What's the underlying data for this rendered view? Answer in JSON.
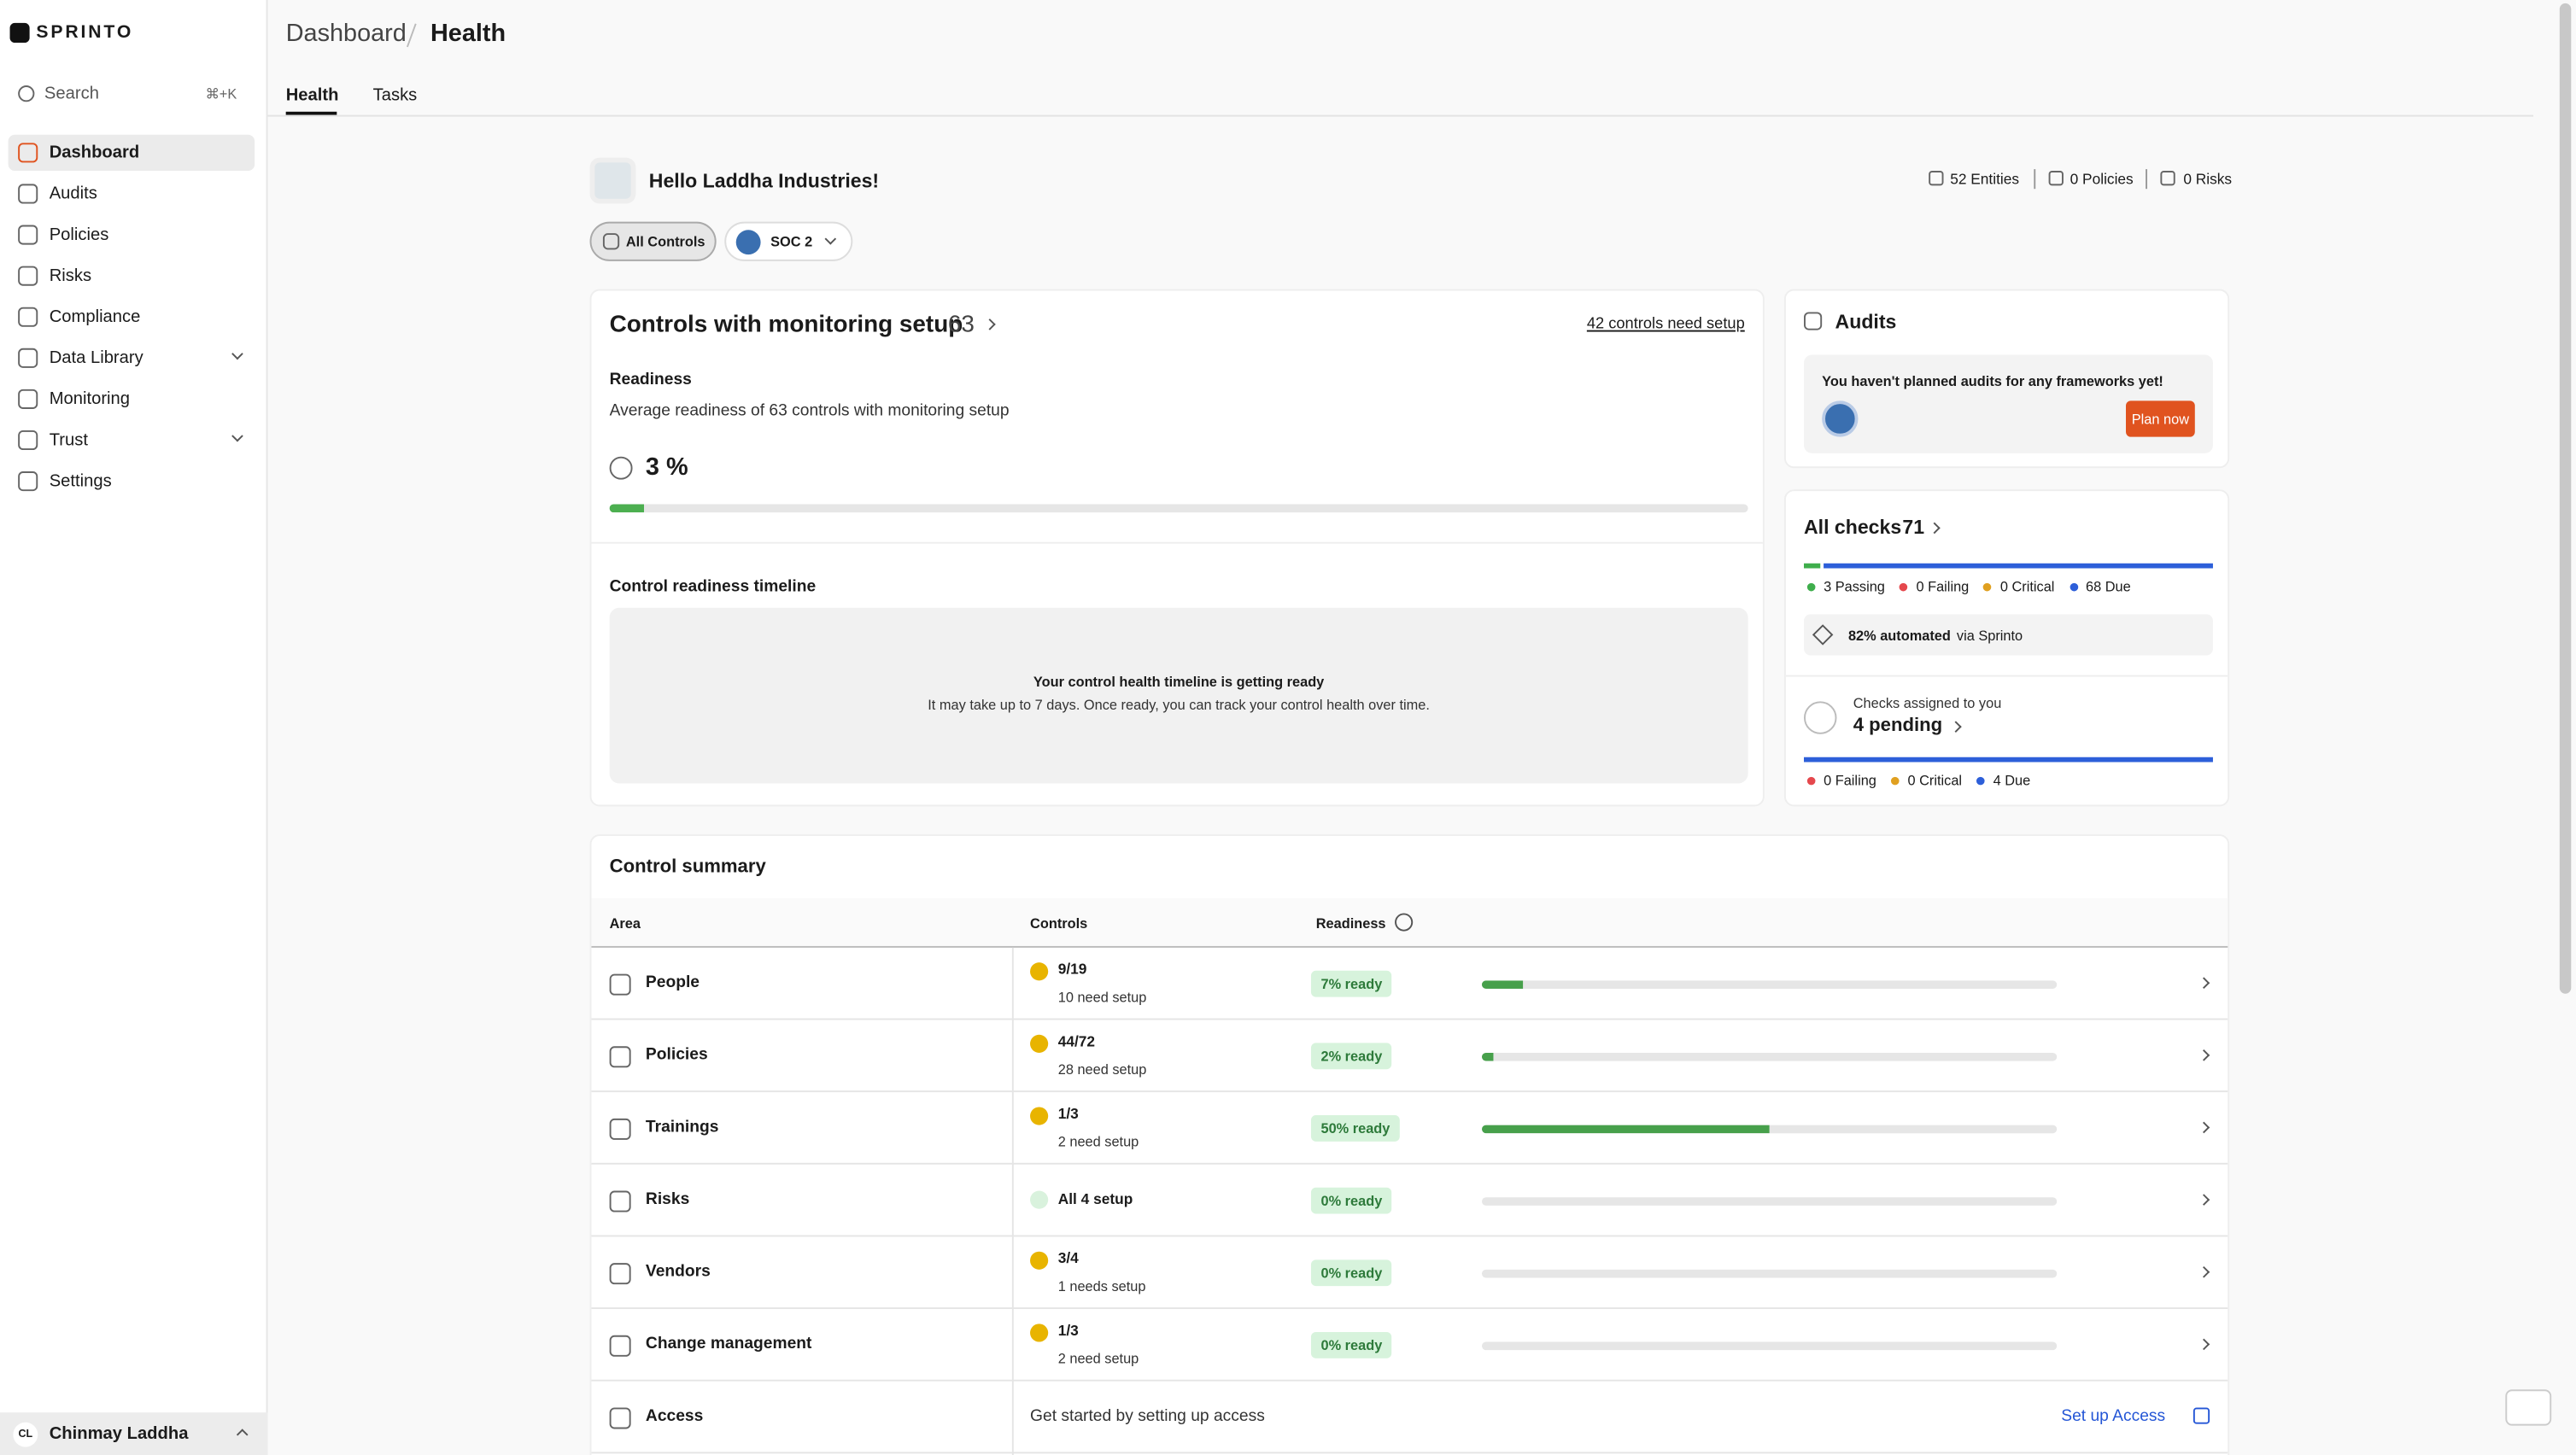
{
  "sidebar": {
    "brand": "SPRINTO",
    "search": "Search",
    "shortcut": "⌘+K",
    "nav": [
      "Dashboard",
      "Audits",
      "Policies",
      "Risks",
      "Compliance",
      "Data Library",
      "Monitoring",
      "Trust",
      "Settings"
    ],
    "user_initials": "CL",
    "user": "Chinmay Laddha"
  },
  "header": {
    "breadcrumb": [
      "Dashboard",
      "Health"
    ],
    "tabs": [
      "Health",
      "Tasks"
    ]
  },
  "greeting": "Hello Laddha Industries!",
  "stats": [
    "52 Entities",
    "0 Policies",
    "0 Risks"
  ],
  "filters": [
    "All Controls",
    "SOC 2"
  ],
  "monitoring": {
    "title": "Controls with monitoring setup",
    "count": 63,
    "setup_link": "42 controls need setup",
    "readiness_title": "Readiness",
    "readiness_desc": "Average readiness of 63 controls with monitoring setup",
    "readiness": {
      "value": 3,
      "label": "3 %"
    },
    "timeline_title": "Control readiness timeline",
    "timeline_heading": "Your control health timeline is getting ready",
    "timeline_text": "It may take up to 7 days. Once ready, you can track your control health over time."
  },
  "audits": {
    "title": "Audits",
    "message": "You haven't planned audits for any frameworks yet!",
    "button": "Plan now"
  },
  "checks": {
    "title": "All checks",
    "total": 71,
    "legend": [
      {
        "value": 3,
        "label": "3 Passing",
        "color": "#3fae4c"
      },
      {
        "value": 0,
        "label": "0 Failing",
        "color": "#e5484d"
      },
      {
        "value": 0,
        "label": "0 Critical",
        "color": "#e0a020"
      },
      {
        "value": 68,
        "label": "68 Due",
        "color": "#2d5fd9"
      }
    ],
    "automated": "82% automated",
    "automated_suffix": "via Sprinto",
    "assigned_title": "Checks assigned to you",
    "assigned_pending": "4 pending",
    "assigned_legend": [
      {
        "value": 0,
        "label": "0 Failing",
        "color": "#e5484d"
      },
      {
        "value": 0,
        "label": "0 Critical",
        "color": "#e0a020"
      },
      {
        "value": 4,
        "label": "4 Due",
        "color": "#2d5fd9"
      }
    ]
  },
  "summary": {
    "title": "Control summary",
    "columns": [
      "Area",
      "Controls",
      "Readiness"
    ],
    "rows": [
      {
        "area": "People",
        "controls": "9/19",
        "note": "10 need setup",
        "readiness": {
          "value": 7,
          "label": "7% ready"
        }
      },
      {
        "area": "Policies",
        "controls": "44/72",
        "note": "28 need setup",
        "readiness": {
          "value": 2,
          "label": "2% ready"
        }
      },
      {
        "area": "Trainings",
        "controls": "1/3",
        "note": "2 need setup",
        "readiness": {
          "value": 50,
          "label": "50% ready"
        }
      },
      {
        "area": "Risks",
        "controls": "All 4 setup",
        "readiness": {
          "value": 0,
          "label": "0% ready"
        }
      },
      {
        "area": "Vendors",
        "controls": "3/4",
        "note": "1 needs setup",
        "readiness": {
          "value": 0,
          "label": "0% ready"
        }
      },
      {
        "area": "Change management",
        "controls": "1/3",
        "note": "2 need setup",
        "readiness": {
          "value": 0,
          "label": "0% ready"
        }
      },
      {
        "area": "Access",
        "message": "Get started by setting up access",
        "action": "Set up Access"
      }
    ]
  }
}
